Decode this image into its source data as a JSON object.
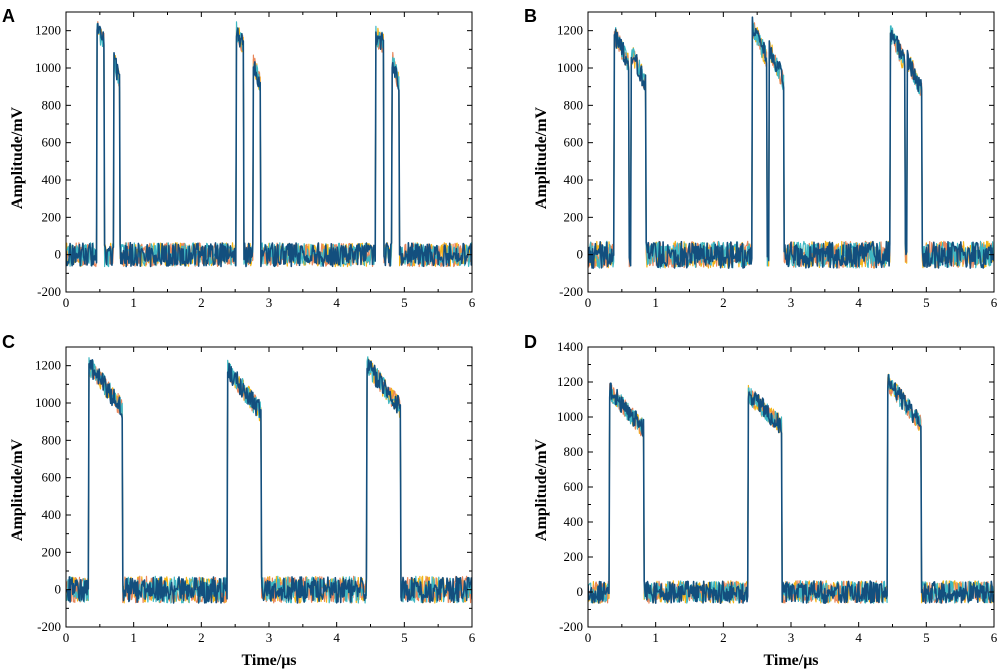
{
  "figure": {
    "description_note": ""
  },
  "colors": {
    "series": [
      "#F4B619",
      "#E8875B",
      "#3FB7C2",
      "#134F7E"
    ],
    "axis": "#000000"
  },
  "chart_data": [
    {
      "panel": "A",
      "type": "line",
      "xlabel": "",
      "ylabel": "Amplitude/mV",
      "xlim": [
        0,
        6
      ],
      "ylim": [
        -200,
        1300
      ],
      "xticks": [
        0,
        1,
        2,
        3,
        4,
        5,
        6
      ],
      "yticks": [
        -200,
        0,
        200,
        400,
        600,
        800,
        1000,
        1200
      ],
      "series_count": 4,
      "baseline_noise_mV": 40,
      "pulses": [
        {
          "start": 0.46,
          "end": 0.56,
          "top": 1200,
          "decay": 60
        },
        {
          "start": 0.71,
          "end": 0.79,
          "top": 1050,
          "decay": 130
        },
        {
          "start": 2.52,
          "end": 2.62,
          "top": 1200,
          "decay": 80
        },
        {
          "start": 2.77,
          "end": 2.87,
          "top": 1020,
          "decay": 100
        },
        {
          "start": 4.58,
          "end": 4.69,
          "top": 1170,
          "decay": 40
        },
        {
          "start": 4.82,
          "end": 4.92,
          "top": 1050,
          "decay": 140
        }
      ]
    },
    {
      "panel": "B",
      "type": "line",
      "xlabel": "",
      "ylabel": "Amplitude/mV",
      "xlim": [
        0,
        6
      ],
      "ylim": [
        -200,
        1300
      ],
      "xticks": [
        0,
        1,
        2,
        3,
        4,
        5,
        6
      ],
      "yticks": [
        -200,
        0,
        200,
        400,
        600,
        800,
        1000,
        1200
      ],
      "series_count": 4,
      "baseline_noise_mV": 45,
      "pulses": [
        {
          "start": 0.39,
          "end": 0.6,
          "top": 1180,
          "decay": 150
        },
        {
          "start": 0.64,
          "end": 0.85,
          "top": 1080,
          "decay": 160
        },
        {
          "start": 2.43,
          "end": 2.64,
          "top": 1220,
          "decay": 170
        },
        {
          "start": 2.68,
          "end": 2.89,
          "top": 1100,
          "decay": 170
        },
        {
          "start": 4.47,
          "end": 4.68,
          "top": 1200,
          "decay": 180
        },
        {
          "start": 4.72,
          "end": 4.93,
          "top": 1050,
          "decay": 170
        }
      ]
    },
    {
      "panel": "C",
      "type": "line",
      "xlabel": "Time/μs",
      "ylabel": "Amplitude/mV",
      "xlim": [
        0,
        6
      ],
      "ylim": [
        -200,
        1300
      ],
      "xticks": [
        0,
        1,
        2,
        3,
        4,
        5,
        6
      ],
      "yticks": [
        -200,
        0,
        200,
        400,
        600,
        800,
        1000,
        1200
      ],
      "series_count": 4,
      "baseline_noise_mV": 45,
      "pulses": [
        {
          "start": 0.34,
          "end": 0.83,
          "top": 1200,
          "decay": 230
        },
        {
          "start": 2.39,
          "end": 2.88,
          "top": 1180,
          "decay": 230
        },
        {
          "start": 4.45,
          "end": 4.94,
          "top": 1200,
          "decay": 230
        }
      ]
    },
    {
      "panel": "D",
      "type": "line",
      "xlabel": "Time/μs",
      "ylabel": "Amplitude/mV",
      "xlim": [
        0,
        6
      ],
      "ylim": [
        -200,
        1400
      ],
      "xticks": [
        0,
        1,
        2,
        3,
        4,
        5,
        6
      ],
      "yticks": [
        -200,
        0,
        200,
        400,
        600,
        800,
        1000,
        1200,
        1400
      ],
      "series_count": 4,
      "baseline_noise_mV": 40,
      "pulses": [
        {
          "start": 0.32,
          "end": 0.82,
          "top": 1150,
          "decay": 220
        },
        {
          "start": 2.37,
          "end": 2.86,
          "top": 1130,
          "decay": 180
        },
        {
          "start": 4.43,
          "end": 4.92,
          "top": 1200,
          "decay": 240
        }
      ]
    }
  ]
}
